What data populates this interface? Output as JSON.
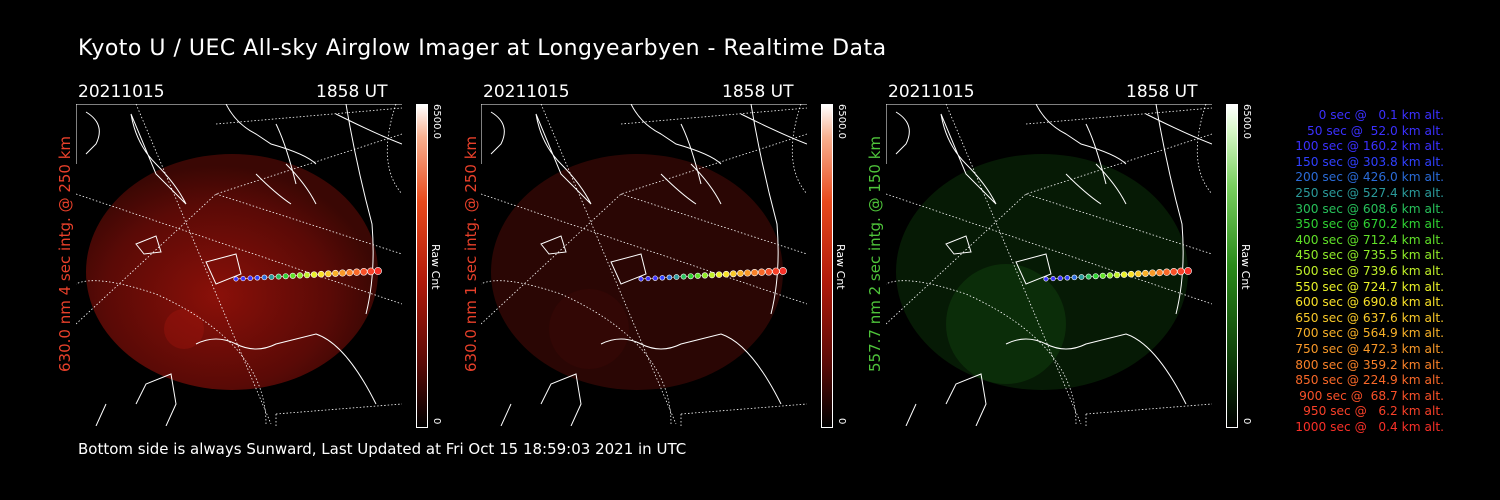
{
  "header": {
    "title": "Kyoto U / UEC All-sky Airglow Imager at Longyearbyen - Realtime Data"
  },
  "panels": [
    {
      "date": "20211015",
      "time": "1858 UT",
      "ylabel": "630.0 nm 4 sec intg. @ 250 km",
      "color": "#e8402a",
      "cbar_max": "6500.0",
      "cbar_min": "0",
      "cbar_unit": "Raw Cnt",
      "glow": "#7a0d08"
    },
    {
      "date": "20211015",
      "time": "1858 UT",
      "ylabel": "630.0 nm 1 sec intg. @ 250 km",
      "color": "#e8402a",
      "cbar_max": "6500.0",
      "cbar_min": "0",
      "cbar_unit": "Raw Cnt",
      "glow": "#3a0805"
    },
    {
      "date": "20211015",
      "time": "1858 UT",
      "ylabel": "557.7 nm 2 sec intg. @ 150 km",
      "color": "#4ec33a",
      "cbar_max": "6500.0",
      "cbar_min": "0",
      "cbar_unit": "Raw Cnt",
      "glow": "#0f3a0b"
    }
  ],
  "footer": {
    "text": "Bottom side is always Sunward, Last Updated at Fri Oct 15 18:59:03 2021 in UTC"
  },
  "legend": [
    {
      "text": "0 sec @   0.1 km alt.",
      "color": "#3b30ff"
    },
    {
      "text": "50 sec @  52.0 km alt.",
      "color": "#3b30ff"
    },
    {
      "text": "100 sec @ 160.2 km alt.",
      "color": "#3b30ff"
    },
    {
      "text": "150 sec @ 303.8 km alt.",
      "color": "#3040ff"
    },
    {
      "text": "200 sec @ 426.0 km alt.",
      "color": "#2a6bd8"
    },
    {
      "text": "250 sec @ 527.4 km alt.",
      "color": "#2a9a9a"
    },
    {
      "text": "300 sec @ 608.6 km alt.",
      "color": "#27c05a"
    },
    {
      "text": "350 sec @ 670.2 km alt.",
      "color": "#2fd232"
    },
    {
      "text": "400 sec @ 712.4 km alt.",
      "color": "#60e028"
    },
    {
      "text": "450 sec @ 735.5 km alt.",
      "color": "#8fea28"
    },
    {
      "text": "500 sec @ 739.6 km alt.",
      "color": "#c0f028"
    },
    {
      "text": "550 sec @ 724.7 km alt.",
      "color": "#e8f028"
    },
    {
      "text": "600 sec @ 690.8 km alt.",
      "color": "#f8e028"
    },
    {
      "text": "650 sec @ 637.6 km alt.",
      "color": "#f8c828"
    },
    {
      "text": "700 sec @ 564.9 km alt.",
      "color": "#f8b028"
    },
    {
      "text": "750 sec @ 472.3 km alt.",
      "color": "#f89828"
    },
    {
      "text": "800 sec @ 359.2 km alt.",
      "color": "#f88028"
    },
    {
      "text": "850 sec @ 224.9 km alt.",
      "color": "#f86828"
    },
    {
      "text": "900 sec @  68.7 km alt.",
      "color": "#f85028"
    },
    {
      "text": "950 sec @   6.2 km alt.",
      "color": "#f84028"
    },
    {
      "text": "1000 sec @   0.4 km alt.",
      "color": "#f83028"
    }
  ]
}
